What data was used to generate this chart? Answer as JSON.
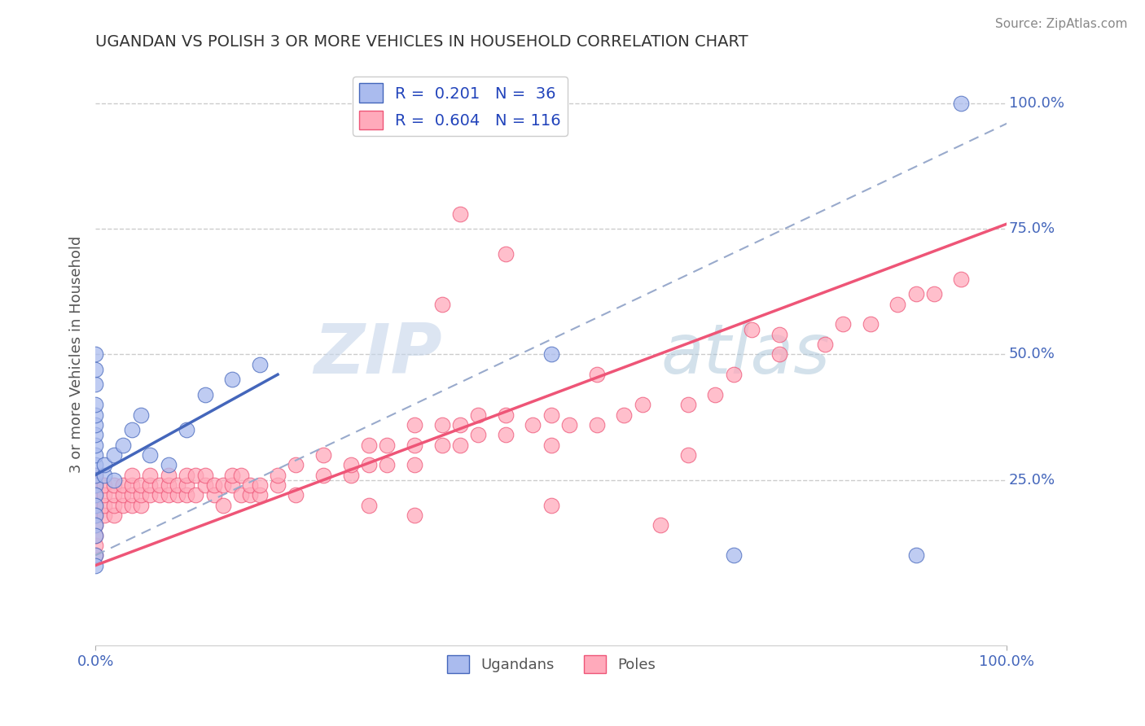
{
  "title": "UGANDAN VS POLISH 3 OR MORE VEHICLES IN HOUSEHOLD CORRELATION CHART",
  "source": "Source: ZipAtlas.com",
  "ylabel": "3 or more Vehicles in Household",
  "xlim": [
    0.0,
    1.0
  ],
  "ylim": [
    -0.08,
    1.08
  ],
  "ytick_labels": [
    "100.0%",
    "75.0%",
    "50.0%",
    "25.0%"
  ],
  "ytick_values": [
    1.0,
    0.75,
    0.5,
    0.25
  ],
  "grid_color": "#cccccc",
  "background_color": "#ffffff",
  "ugandan_color": "#aabbee",
  "polish_color": "#ffaabb",
  "ugandan_line_color": "#4466bb",
  "polish_line_color": "#ee5577",
  "ugandan_scatter": [
    [
      0.0,
      0.24
    ],
    [
      0.0,
      0.26
    ],
    [
      0.0,
      0.28
    ],
    [
      0.0,
      0.22
    ],
    [
      0.0,
      0.2
    ],
    [
      0.0,
      0.18
    ],
    [
      0.0,
      0.16
    ],
    [
      0.0,
      0.14
    ],
    [
      0.0,
      0.3
    ],
    [
      0.0,
      0.32
    ],
    [
      0.0,
      0.34
    ],
    [
      0.0,
      0.36
    ],
    [
      0.0,
      0.38
    ],
    [
      0.0,
      0.4
    ],
    [
      0.0,
      0.44
    ],
    [
      0.0,
      0.47
    ],
    [
      0.0,
      0.5
    ],
    [
      0.0,
      0.1
    ],
    [
      0.0,
      0.08
    ],
    [
      0.01,
      0.26
    ],
    [
      0.01,
      0.28
    ],
    [
      0.02,
      0.3
    ],
    [
      0.02,
      0.25
    ],
    [
      0.03,
      0.32
    ],
    [
      0.04,
      0.35
    ],
    [
      0.05,
      0.38
    ],
    [
      0.06,
      0.3
    ],
    [
      0.08,
      0.28
    ],
    [
      0.1,
      0.35
    ],
    [
      0.12,
      0.42
    ],
    [
      0.15,
      0.45
    ],
    [
      0.18,
      0.48
    ],
    [
      0.5,
      0.5
    ],
    [
      0.7,
      0.1
    ],
    [
      0.9,
      0.1
    ],
    [
      0.95,
      1.0
    ]
  ],
  "polish_scatter": [
    [
      0.0,
      0.2
    ],
    [
      0.0,
      0.22
    ],
    [
      0.0,
      0.24
    ],
    [
      0.0,
      0.26
    ],
    [
      0.0,
      0.1
    ],
    [
      0.0,
      0.12
    ],
    [
      0.0,
      0.14
    ],
    [
      0.0,
      0.16
    ],
    [
      0.0,
      0.18
    ],
    [
      0.01,
      0.18
    ],
    [
      0.01,
      0.2
    ],
    [
      0.01,
      0.22
    ],
    [
      0.01,
      0.24
    ],
    [
      0.02,
      0.18
    ],
    [
      0.02,
      0.2
    ],
    [
      0.02,
      0.22
    ],
    [
      0.02,
      0.24
    ],
    [
      0.03,
      0.2
    ],
    [
      0.03,
      0.22
    ],
    [
      0.03,
      0.24
    ],
    [
      0.04,
      0.2
    ],
    [
      0.04,
      0.22
    ],
    [
      0.04,
      0.24
    ],
    [
      0.04,
      0.26
    ],
    [
      0.05,
      0.2
    ],
    [
      0.05,
      0.22
    ],
    [
      0.05,
      0.24
    ],
    [
      0.06,
      0.22
    ],
    [
      0.06,
      0.24
    ],
    [
      0.06,
      0.26
    ],
    [
      0.07,
      0.22
    ],
    [
      0.07,
      0.24
    ],
    [
      0.08,
      0.22
    ],
    [
      0.08,
      0.24
    ],
    [
      0.08,
      0.26
    ],
    [
      0.09,
      0.22
    ],
    [
      0.09,
      0.24
    ],
    [
      0.1,
      0.22
    ],
    [
      0.1,
      0.24
    ],
    [
      0.1,
      0.26
    ],
    [
      0.11,
      0.22
    ],
    [
      0.11,
      0.26
    ],
    [
      0.12,
      0.24
    ],
    [
      0.12,
      0.26
    ],
    [
      0.13,
      0.22
    ],
    [
      0.13,
      0.24
    ],
    [
      0.14,
      0.2
    ],
    [
      0.14,
      0.24
    ],
    [
      0.15,
      0.24
    ],
    [
      0.15,
      0.26
    ],
    [
      0.16,
      0.22
    ],
    [
      0.16,
      0.26
    ],
    [
      0.17,
      0.22
    ],
    [
      0.17,
      0.24
    ],
    [
      0.18,
      0.22
    ],
    [
      0.18,
      0.24
    ],
    [
      0.2,
      0.24
    ],
    [
      0.2,
      0.26
    ],
    [
      0.22,
      0.22
    ],
    [
      0.22,
      0.28
    ],
    [
      0.25,
      0.26
    ],
    [
      0.25,
      0.3
    ],
    [
      0.28,
      0.26
    ],
    [
      0.28,
      0.28
    ],
    [
      0.3,
      0.28
    ],
    [
      0.3,
      0.32
    ],
    [
      0.32,
      0.28
    ],
    [
      0.32,
      0.32
    ],
    [
      0.35,
      0.28
    ],
    [
      0.35,
      0.32
    ],
    [
      0.35,
      0.36
    ],
    [
      0.38,
      0.32
    ],
    [
      0.38,
      0.36
    ],
    [
      0.4,
      0.32
    ],
    [
      0.4,
      0.36
    ],
    [
      0.42,
      0.34
    ],
    [
      0.42,
      0.38
    ],
    [
      0.45,
      0.34
    ],
    [
      0.45,
      0.38
    ],
    [
      0.48,
      0.36
    ],
    [
      0.5,
      0.32
    ],
    [
      0.5,
      0.38
    ],
    [
      0.52,
      0.36
    ],
    [
      0.55,
      0.36
    ],
    [
      0.58,
      0.38
    ],
    [
      0.6,
      0.4
    ],
    [
      0.62,
      0.16
    ],
    [
      0.65,
      0.4
    ],
    [
      0.68,
      0.42
    ],
    [
      0.7,
      0.46
    ],
    [
      0.72,
      0.55
    ],
    [
      0.75,
      0.5
    ],
    [
      0.75,
      0.54
    ],
    [
      0.8,
      0.52
    ],
    [
      0.82,
      0.56
    ],
    [
      0.85,
      0.56
    ],
    [
      0.88,
      0.6
    ],
    [
      0.9,
      0.62
    ],
    [
      0.92,
      0.62
    ],
    [
      0.95,
      0.65
    ],
    [
      0.45,
      0.7
    ],
    [
      0.38,
      0.6
    ],
    [
      0.5,
      0.2
    ],
    [
      0.65,
      0.3
    ],
    [
      0.55,
      0.46
    ],
    [
      0.4,
      0.78
    ],
    [
      0.3,
      0.2
    ],
    [
      0.35,
      0.18
    ]
  ],
  "ugandan_line_x": [
    0.0,
    0.2
  ],
  "ugandan_line_y": [
    0.26,
    0.46
  ],
  "polish_line_x": [
    0.0,
    1.0
  ],
  "polish_line_y": [
    0.08,
    0.76
  ],
  "dashed_line_x": [
    0.0,
    1.0
  ],
  "dashed_line_y": [
    0.1,
    0.96
  ]
}
